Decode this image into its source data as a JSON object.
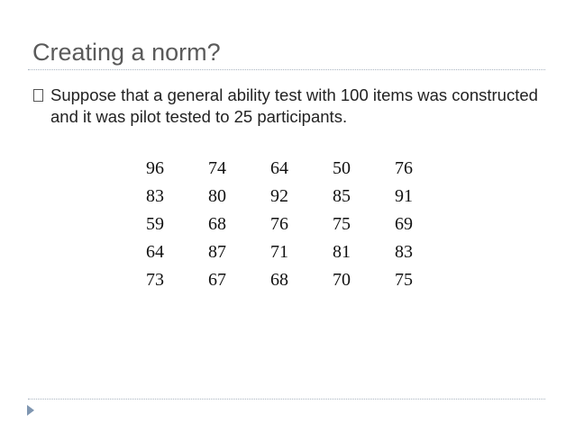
{
  "slide": {
    "title": "Creating a norm?",
    "bullet": "Suppose that a general ability test with 100 items was constructed and it was pilot tested to 25 participants.",
    "scores": [
      [
        "96",
        "74",
        "64",
        "50",
        "76"
      ],
      [
        "83",
        "80",
        "92",
        "85",
        "91"
      ],
      [
        "59",
        "68",
        "76",
        "75",
        "69"
      ],
      [
        "64",
        "87",
        "71",
        "81",
        "83"
      ],
      [
        "73",
        "67",
        "68",
        "70",
        "75"
      ]
    ],
    "accent_color": "#7f96b1",
    "icons": {
      "bullet": "square-bullet-icon",
      "nav": "next-slide-arrow-icon"
    }
  }
}
